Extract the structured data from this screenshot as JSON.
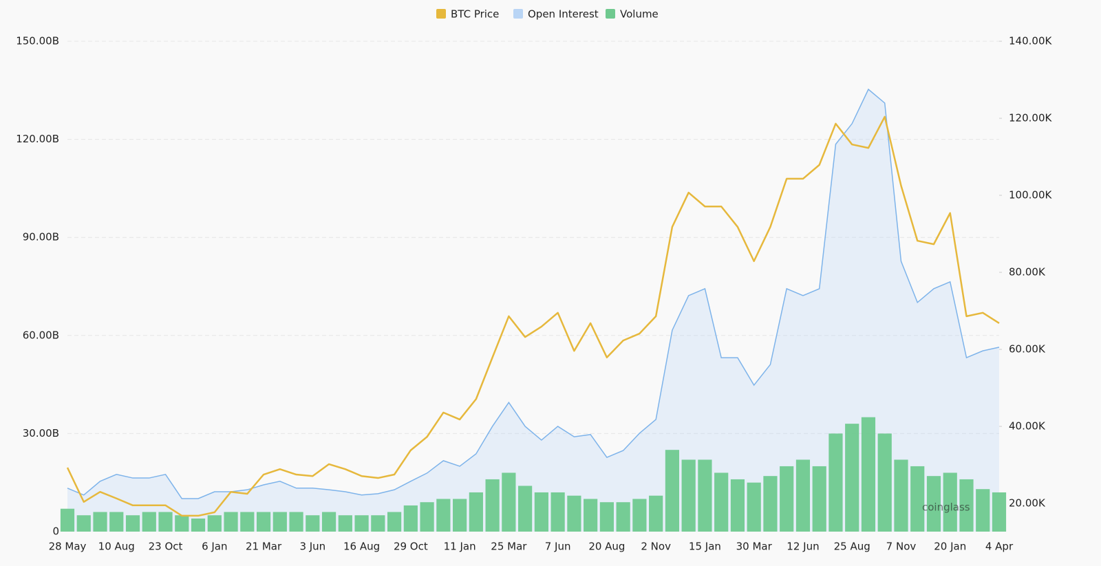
{
  "chart_data": {
    "type": "line",
    "legend": "top",
    "grid": true,
    "watermark": "coinglass",
    "categories": [
      "28 May",
      null,
      null,
      "10 Aug",
      null,
      null,
      "23 Oct",
      null,
      null,
      "6 Jan",
      null,
      null,
      "21 Mar",
      null,
      null,
      "3 Jun",
      null,
      null,
      "16 Aug",
      null,
      null,
      "29 Oct",
      null,
      null,
      "11 Jan",
      null,
      null,
      "25 Mar",
      null,
      null,
      "7 Jun",
      null,
      null,
      "20 Aug",
      null,
      null,
      "2 Nov",
      null,
      null,
      "15 Jan",
      null,
      null,
      "30 Mar",
      null,
      null,
      "12 Jun",
      null,
      null,
      "25 Aug",
      null,
      null,
      "7 Nov",
      null,
      null,
      "20 Jan",
      null,
      null,
      "4 Apr"
    ],
    "ylim": [
      0,
      150
    ],
    "yticks": [
      0,
      {
        "value": 30,
        "label": "30.00B"
      },
      {
        "value": 60,
        "label": "60.00B"
      },
      {
        "value": 90,
        "label": "90.00B"
      },
      {
        "value": 120,
        "label": "120.00B"
      },
      {
        "value": 150,
        "label": "150.00B"
      }
    ],
    "y2lim": [
      12.68,
      140
    ],
    "y2ticks": [
      {
        "value": 20,
        "label": "20.00K"
      },
      {
        "value": 40,
        "label": "40.00K"
      },
      {
        "value": 60,
        "label": "60.00K"
      },
      {
        "value": 80,
        "label": "80.00K"
      },
      {
        "value": 100,
        "label": "100.00K"
      },
      {
        "value": 120,
        "label": "120.00K"
      },
      {
        "value": 140,
        "label": "140.00K"
      }
    ],
    "series": [
      {
        "name": "BTC Price",
        "type": "line",
        "axis": "y2",
        "color": "#e6b83c",
        "values": [
          29.3,
          20.4,
          23.0,
          21.3,
          19.5,
          19.5,
          19.5,
          16.8,
          16.8,
          17.7,
          23.0,
          22.5,
          27.5,
          28.9,
          27.5,
          27.1,
          30.2,
          28.9,
          27.1,
          26.6,
          27.5,
          33.8,
          37.3,
          43.6,
          41.8,
          47.1,
          57.9,
          68.6,
          63.2,
          65.9,
          69.5,
          59.6,
          66.8,
          57.9,
          62.3,
          64.1,
          68.6,
          91.8,
          100.7,
          97.1,
          97.1,
          91.8,
          82.9,
          91.8,
          104.3,
          104.3,
          107.9,
          118.6,
          113.2,
          112.3,
          120.4,
          102.5,
          88.2,
          87.3,
          95.4,
          68.6,
          69.5,
          66.8
        ]
      },
      {
        "name": "Open Interest",
        "type": "area",
        "color": "#b9d5f5",
        "values": [
          13.3,
          11.2,
          15.4,
          17.5,
          16.4,
          16.4,
          17.5,
          10.1,
          10.1,
          12.2,
          12.2,
          12.8,
          14.3,
          15.4,
          13.3,
          13.3,
          12.8,
          12.2,
          11.2,
          11.6,
          12.8,
          15.4,
          17.9,
          21.7,
          20.0,
          23.8,
          32.2,
          39.5,
          32.2,
          28.0,
          32.2,
          29.0,
          29.7,
          22.7,
          24.8,
          30.1,
          34.3,
          61.6,
          72.2,
          74.3,
          53.2,
          53.2,
          44.8,
          51.1,
          74.3,
          72.2,
          74.3,
          118.5,
          124.8,
          135.3,
          131.1,
          82.7,
          70.1,
          74.3,
          76.4,
          53.2,
          55.3,
          56.4
        ]
      },
      {
        "name": "Volume",
        "type": "bar",
        "color": "#6fc98f",
        "values": [
          7,
          5,
          6,
          6,
          5,
          6,
          6,
          5,
          4,
          5,
          6,
          6,
          6,
          6,
          6,
          5,
          6,
          5,
          5,
          5,
          6,
          8,
          9,
          10,
          10,
          12,
          16,
          18,
          14,
          12,
          12,
          11,
          10,
          9,
          9,
          10,
          11,
          25,
          22,
          22,
          18,
          16,
          15,
          17,
          20,
          22,
          20,
          30,
          33,
          35,
          30,
          22,
          20,
          17,
          18,
          16,
          13,
          12
        ]
      }
    ]
  }
}
